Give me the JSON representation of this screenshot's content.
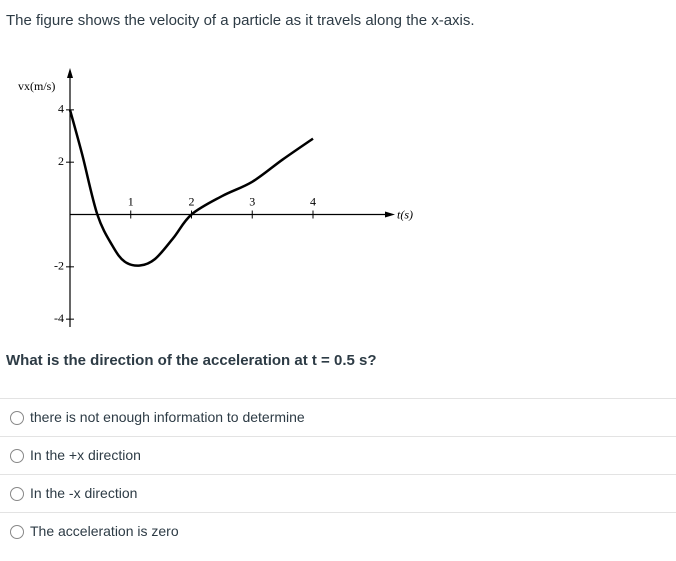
{
  "prompt": "The figure shows the velocity of a particle as it travels along the x-axis.",
  "chart_data": {
    "type": "line",
    "ylabel": "vx(m/s)",
    "xlabel": "t(s)",
    "x": [
      0,
      0.2,
      0.45,
      0.7,
      0.9,
      1.15,
      1.4,
      1.7,
      2.0,
      2.5,
      3.0,
      3.5,
      4.0
    ],
    "series": [
      {
        "color": "#000000",
        "values": [
          4,
          2.3,
          0,
          -1.2,
          -1.8,
          -1.95,
          -1.7,
          -0.9,
          0,
          0.7,
          1.25,
          2.1,
          2.9
        ]
      }
    ],
    "xlim": [
      0,
      5.35
    ],
    "ylim": [
      -4.3,
      5.6
    ],
    "xticks": [
      1,
      2,
      3,
      4
    ],
    "yticks": [
      -4,
      -2,
      2,
      4
    ]
  },
  "question": "What is the direction of the acceleration at t = 0.5 s?",
  "options": [
    "there is not enough information to determine",
    "In the +x direction",
    "In the -x direction",
    "The acceleration is zero"
  ]
}
